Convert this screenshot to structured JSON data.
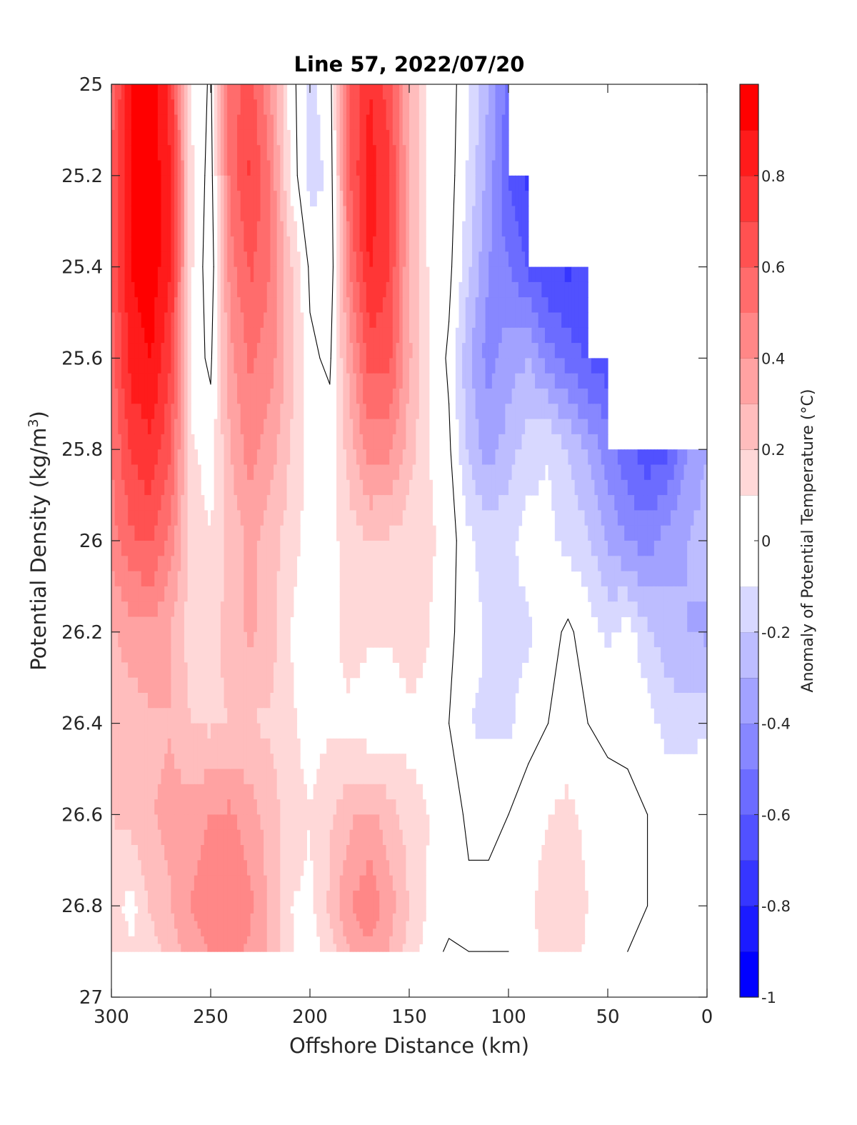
{
  "chart_data": {
    "type": "heatmap",
    "title": "Line 57, 2022/07/20",
    "xlabel": "Offshore Distance (km)",
    "ylabel_main": "Potential Density (kg/m",
    "ylabel_sup": "3",
    "ylabel_end": ")",
    "colorbar_label": "Anomaly of Potential Temperature (°C)",
    "xlim": [
      300,
      0
    ],
    "ylim": [
      25,
      27
    ],
    "x_reversed": true,
    "y_reversed": true,
    "xticks": [
      300,
      250,
      200,
      150,
      100,
      50,
      0
    ],
    "xtick_labels": [
      "300",
      "250",
      "200",
      "150",
      "100",
      "50",
      "0"
    ],
    "yticks": [
      25,
      25.2,
      25.4,
      25.6,
      25.8,
      26,
      26.2,
      26.4,
      26.6,
      26.8,
      27
    ],
    "ytick_labels": [
      "25",
      "25.2",
      "25.4",
      "25.6",
      "25.8",
      "26",
      "26.2",
      "26.4",
      "26.6",
      "26.8",
      "27"
    ],
    "colorbar_range": [
      -1,
      1
    ],
    "colorbar_ticks": [
      0.8,
      0.6,
      0.4,
      0.2,
      0,
      -0.2,
      -0.4,
      -0.6,
      -0.8,
      -1
    ],
    "colorbar_tick_labels": [
      "0.8",
      "0.6",
      "0.4",
      "0.2",
      "0",
      "-0.2",
      "-0.4",
      "-0.6",
      "-0.8",
      "-1"
    ],
    "contour_step": 0.1,
    "grid_x_km": [
      300,
      290,
      280,
      270,
      260,
      250,
      240,
      230,
      220,
      210,
      200,
      190,
      180,
      170,
      160,
      150,
      140,
      130,
      120,
      110,
      100,
      90,
      80,
      70,
      60,
      50,
      40,
      30,
      20,
      10,
      0
    ],
    "grid_y_density": [
      25.0,
      25.2,
      25.4,
      25.6,
      25.8,
      26.0,
      26.2,
      26.4,
      26.6,
      26.8,
      26.9
    ],
    "anomaly_rows": [
      [
        0.55,
        0.9,
        0.95,
        0.75,
        0.1,
        -0.02,
        0.55,
        0.65,
        0.4,
        0.05,
        -0.12,
        -0.05,
        0.6,
        0.8,
        0.65,
        0.3,
        0.08,
        0.05,
        -0.08,
        -0.3,
        -0.55,
        null,
        null,
        null,
        null,
        null,
        null,
        null,
        null,
        null,
        null
      ],
      [
        0.6,
        0.92,
        0.98,
        0.8,
        0.12,
        -0.05,
        0.55,
        0.72,
        0.5,
        0.08,
        -0.14,
        -0.08,
        0.6,
        0.85,
        0.72,
        0.3,
        0.08,
        0.05,
        -0.12,
        -0.35,
        -0.6,
        -0.72,
        null,
        null,
        null,
        null,
        null,
        null,
        null,
        null,
        null
      ],
      [
        0.6,
        0.9,
        0.98,
        0.8,
        0.12,
        -0.08,
        0.45,
        0.62,
        0.5,
        0.22,
        -0.02,
        -0.1,
        0.5,
        0.82,
        0.7,
        0.3,
        0.08,
        0.03,
        -0.18,
        -0.4,
        -0.5,
        -0.62,
        -0.7,
        -0.72,
        -0.68,
        null,
        null,
        null,
        null,
        null,
        null
      ],
      [
        0.55,
        0.85,
        0.9,
        0.7,
        0.05,
        -0.02,
        0.38,
        0.52,
        0.45,
        0.25,
        0.02,
        -0.02,
        0.35,
        0.65,
        0.62,
        0.32,
        0.1,
        -0.02,
        -0.28,
        -0.45,
        -0.35,
        -0.3,
        -0.45,
        -0.55,
        -0.62,
        -0.66,
        null,
        null,
        null,
        null,
        null
      ],
      [
        0.5,
        0.72,
        0.78,
        0.6,
        0.12,
        0.05,
        0.3,
        0.45,
        0.35,
        0.2,
        0.05,
        0.05,
        0.25,
        0.45,
        0.42,
        0.25,
        0.1,
        0.02,
        -0.22,
        -0.35,
        -0.25,
        -0.15,
        -0.1,
        -0.2,
        -0.32,
        -0.45,
        -0.58,
        -0.66,
        -0.62,
        -0.4,
        -0.3
      ],
      [
        0.45,
        0.58,
        0.62,
        0.45,
        0.15,
        0.1,
        0.25,
        0.32,
        0.25,
        0.15,
        0.05,
        0.06,
        0.15,
        0.2,
        0.18,
        0.15,
        0.12,
        0.05,
        -0.08,
        -0.15,
        -0.12,
        -0.05,
        -0.08,
        -0.12,
        -0.18,
        -0.32,
        -0.4,
        -0.45,
        -0.35,
        -0.3,
        -0.25
      ],
      [
        0.28,
        0.35,
        0.38,
        0.3,
        0.15,
        0.15,
        0.25,
        0.32,
        0.25,
        0.1,
        0.02,
        0.06,
        0.15,
        0.12,
        0.12,
        0.18,
        0.1,
        0.02,
        -0.05,
        -0.12,
        -0.14,
        -0.12,
        -0.04,
        0.02,
        -0.05,
        -0.12,
        -0.05,
        -0.18,
        -0.26,
        -0.3,
        -0.32
      ],
      [
        0.25,
        0.25,
        0.28,
        0.3,
        0.2,
        0.18,
        0.2,
        0.2,
        0.18,
        0.12,
        0.05,
        0.08,
        0.07,
        0.02,
        0.02,
        0.06,
        0.05,
        0.0,
        -0.1,
        -0.12,
        -0.12,
        -0.04,
        0.0,
        0.05,
        0.0,
        -0.03,
        -0.02,
        -0.05,
        -0.15,
        -0.15,
        -0.12
      ],
      [
        0.2,
        0.25,
        0.3,
        0.32,
        0.35,
        0.4,
        0.42,
        0.35,
        0.25,
        0.15,
        0.1,
        0.18,
        0.28,
        0.32,
        0.25,
        0.15,
        0.1,
        0.05,
        -0.02,
        -0.02,
        0.0,
        0.05,
        0.1,
        0.12,
        0.08,
        0.05,
        0.02,
        0.0,
        0.0,
        0.0,
        0.0
      ],
      [
        0.15,
        0.05,
        0.22,
        0.3,
        0.4,
        0.45,
        0.48,
        0.42,
        0.28,
        0.1,
        0.08,
        0.22,
        0.4,
        0.48,
        0.35,
        0.2,
        0.08,
        0.05,
        0.02,
        0.02,
        0.02,
        0.08,
        0.15,
        0.15,
        0.1,
        0.05,
        0.02,
        0.0,
        0.0,
        0.0,
        0.0
      ],
      [
        0.18,
        0.12,
        0.15,
        0.25,
        0.35,
        0.4,
        0.42,
        0.38,
        0.28,
        0.12,
        0.02,
        0.15,
        0.3,
        0.38,
        0.3,
        0.15,
        0.05,
        -0.02,
        0.0,
        0.0,
        0.0,
        0.05,
        0.15,
        0.15,
        0.08,
        0.02,
        0.0,
        0.0,
        0.0,
        0.0,
        0.0
      ]
    ]
  }
}
